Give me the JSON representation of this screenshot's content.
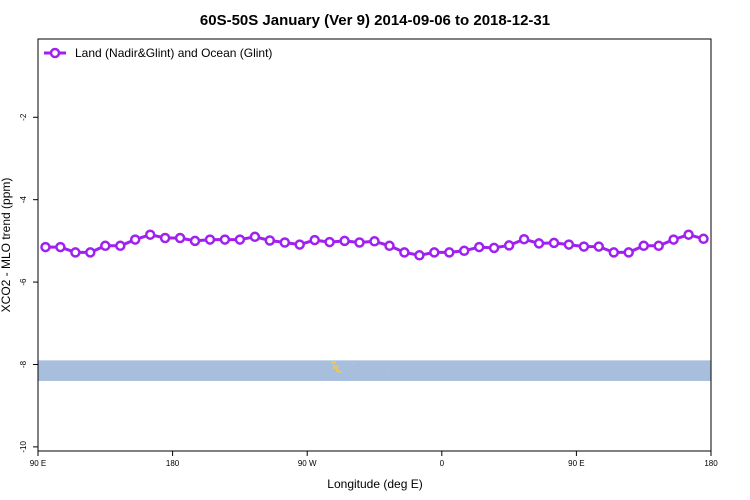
{
  "chart_data": {
    "type": "line",
    "title": "60S-50S January (Ver 9)   2014-09-06 to 2018-12-31",
    "xlabel": "Longitude (deg E)",
    "ylabel": "XCO2 - MLO trend (ppm)",
    "xlim": [
      90,
      540
    ],
    "ylim": [
      -10.1,
      -0.1
    ],
    "x_tick_values": [
      90,
      180,
      270,
      360,
      450,
      540
    ],
    "x_tick_labels": [
      "90 E",
      "180",
      "90 W",
      "0",
      "90 E",
      "180"
    ],
    "y_tick_values": [
      -2,
      -4,
      -6,
      -8,
      -10
    ],
    "y_tick_labels": [
      "-2",
      "-4",
      "-6",
      "-8",
      "-10"
    ],
    "grid": false,
    "legend_position": "top-left",
    "series": [
      {
        "name": "Land (Nadir&Glint) and Ocean (Glint)",
        "color": "#a020f0",
        "x": [
          95,
          105,
          115,
          125,
          135,
          145,
          155,
          165,
          175,
          185,
          195,
          205,
          215,
          225,
          235,
          245,
          255,
          265,
          275,
          285,
          295,
          305,
          315,
          325,
          335,
          345,
          355,
          365,
          375,
          385,
          395,
          405,
          415,
          425,
          435,
          445,
          455,
          465,
          475,
          485,
          495,
          505,
          515,
          525,
          535
        ],
        "values": [
          -5.15,
          -5.15,
          -5.28,
          -5.28,
          -5.12,
          -5.12,
          -4.97,
          -4.85,
          -4.93,
          -4.93,
          -5.0,
          -4.97,
          -4.97,
          -4.97,
          -4.9,
          -4.99,
          -5.04,
          -5.09,
          -4.98,
          -5.03,
          -5.0,
          -5.04,
          -5.01,
          -5.12,
          -5.28,
          -5.35,
          -5.28,
          -5.28,
          -5.24,
          -5.15,
          -5.17,
          -5.11,
          -4.96,
          -5.06,
          -5.05,
          -5.09,
          -5.14,
          -5.14,
          -5.28,
          -5.28,
          -5.12,
          -5.12,
          -4.97,
          -4.85,
          -4.95
        ]
      }
    ],
    "latitude_band": {
      "y_range": [
        -8.4,
        -7.9
      ],
      "color": "#a7bfdd",
      "land_color": "#f2c14e"
    }
  }
}
